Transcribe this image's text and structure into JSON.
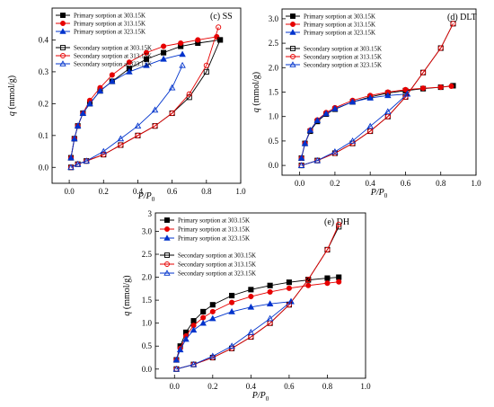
{
  "figure": {
    "chart_data": [
      {
        "type": "scatter",
        "panel_label": "(c) SS",
        "xlabel": "P/P0",
        "ylabel": "q (mmol/g)",
        "xlim": [
          -0.1,
          1.0
        ],
        "ylim": [
          -0.05,
          0.5
        ],
        "x_ticks": [
          "0.0",
          "0.2",
          "0.4",
          "0.6",
          "0.8",
          "1.0"
        ],
        "y_ticks": [
          "0.0",
          "0.1",
          "0.2",
          "0.3",
          "0.4"
        ],
        "legend_position": "top-left",
        "series": [
          {
            "name": "Primary sorption at 303.15K",
            "color": "#000000",
            "marker": "square",
            "filled": true,
            "x": [
              0.01,
              0.03,
              0.05,
              0.08,
              0.12,
              0.18,
              0.25,
              0.35,
              0.45,
              0.55,
              0.65,
              0.75,
              0.88
            ],
            "y": [
              0.03,
              0.09,
              0.13,
              0.17,
              0.2,
              0.24,
              0.27,
              0.31,
              0.34,
              0.36,
              0.38,
              0.39,
              0.4
            ]
          },
          {
            "name": "Primary sorption at 313.15K",
            "color": "#e60000",
            "marker": "circle",
            "filled": true,
            "x": [
              0.01,
              0.03,
              0.05,
              0.08,
              0.12,
              0.18,
              0.25,
              0.35,
              0.45,
              0.55,
              0.65,
              0.75,
              0.86
            ],
            "y": [
              0.03,
              0.09,
              0.13,
              0.17,
              0.21,
              0.25,
              0.29,
              0.33,
              0.36,
              0.38,
              0.39,
              0.4,
              0.41
            ]
          },
          {
            "name": "Primary sorption at 323.15K",
            "color": "#0033cc",
            "marker": "triangle",
            "filled": true,
            "x": [
              0.01,
              0.03,
              0.05,
              0.08,
              0.12,
              0.18,
              0.25,
              0.35,
              0.45,
              0.55,
              0.66
            ],
            "y": [
              0.03,
              0.09,
              0.13,
              0.17,
              0.2,
              0.24,
              0.27,
              0.3,
              0.32,
              0.34,
              0.355
            ]
          },
          {
            "name": "Secondary sorption at 303.15K",
            "color": "#000000",
            "marker": "square",
            "filled": false,
            "x": [
              0.01,
              0.05,
              0.1,
              0.2,
              0.3,
              0.4,
              0.5,
              0.6,
              0.7,
              0.8,
              0.88
            ],
            "y": [
              0.0,
              0.01,
              0.02,
              0.04,
              0.07,
              0.1,
              0.13,
              0.17,
              0.22,
              0.3,
              0.4
            ]
          },
          {
            "name": "Secondary sorption at 313.15K",
            "color": "#e60000",
            "marker": "circle",
            "filled": false,
            "x": [
              0.01,
              0.05,
              0.1,
              0.2,
              0.3,
              0.4,
              0.5,
              0.6,
              0.7,
              0.8,
              0.87
            ],
            "y": [
              0.0,
              0.01,
              0.02,
              0.04,
              0.07,
              0.1,
              0.13,
              0.17,
              0.23,
              0.32,
              0.44
            ]
          },
          {
            "name": "Secondary sorption at 323.15K",
            "color": "#0033cc",
            "marker": "triangle",
            "filled": false,
            "x": [
              0.01,
              0.05,
              0.1,
              0.2,
              0.3,
              0.4,
              0.5,
              0.6,
              0.66
            ],
            "y": [
              0.0,
              0.01,
              0.02,
              0.05,
              0.09,
              0.13,
              0.18,
              0.25,
              0.32
            ]
          }
        ]
      },
      {
        "type": "scatter",
        "panel_label": "(d) DLT",
        "xlabel": "P/P0",
        "ylabel": "q (mmol/g)",
        "xlim": [
          -0.1,
          1.0
        ],
        "ylim": [
          -0.2,
          3.2
        ],
        "x_ticks": [
          "0.0",
          "0.2",
          "0.4",
          "0.6",
          "0.8",
          "1.0"
        ],
        "y_ticks": [
          "0.0",
          "0.5",
          "1.0",
          "1.5",
          "2.0",
          "2.5",
          "3.0"
        ],
        "legend_position": "top-left",
        "series": [
          {
            "name": "Primary sorption at 303.15K",
            "color": "#000000",
            "marker": "square",
            "filled": true,
            "x": [
              0.01,
              0.03,
              0.06,
              0.1,
              0.15,
              0.2,
              0.3,
              0.4,
              0.5,
              0.6,
              0.7,
              0.8,
              0.87
            ],
            "y": [
              0.15,
              0.45,
              0.7,
              0.9,
              1.05,
              1.15,
              1.3,
              1.4,
              1.48,
              1.53,
              1.57,
              1.6,
              1.63
            ]
          },
          {
            "name": "Primary sorption at 313.15K",
            "color": "#e60000",
            "marker": "circle",
            "filled": true,
            "x": [
              0.01,
              0.03,
              0.06,
              0.1,
              0.15,
              0.2,
              0.3,
              0.4,
              0.5,
              0.6,
              0.7,
              0.8,
              0.86
            ],
            "y": [
              0.15,
              0.45,
              0.72,
              0.93,
              1.08,
              1.18,
              1.33,
              1.43,
              1.5,
              1.55,
              1.58,
              1.6,
              1.62
            ]
          },
          {
            "name": "Primary sorption at 323.15K",
            "color": "#0033cc",
            "marker": "triangle",
            "filled": true,
            "x": [
              0.01,
              0.03,
              0.06,
              0.1,
              0.15,
              0.2,
              0.3,
              0.4,
              0.5,
              0.61
            ],
            "y": [
              0.15,
              0.45,
              0.72,
              0.92,
              1.06,
              1.16,
              1.3,
              1.38,
              1.43,
              1.46
            ]
          },
          {
            "name": "Secondary sorption at 303.15K",
            "color": "#000000",
            "marker": "square",
            "filled": false,
            "x": [
              0.01,
              0.1,
              0.2,
              0.3,
              0.4,
              0.5,
              0.6,
              0.7,
              0.8,
              0.87
            ],
            "y": [
              0.0,
              0.1,
              0.25,
              0.45,
              0.7,
              1.0,
              1.4,
              1.9,
              2.4,
              2.9
            ]
          },
          {
            "name": "Secondary sorption at 313.15K",
            "color": "#e60000",
            "marker": "circle",
            "filled": false,
            "x": [
              0.01,
              0.1,
              0.2,
              0.3,
              0.4,
              0.5,
              0.6,
              0.7,
              0.8,
              0.87
            ],
            "y": [
              0.0,
              0.1,
              0.25,
              0.45,
              0.7,
              1.0,
              1.4,
              1.9,
              2.4,
              2.9
            ]
          },
          {
            "name": "Secondary sorption at 323.15K",
            "color": "#0033cc",
            "marker": "triangle",
            "filled": false,
            "x": [
              0.01,
              0.1,
              0.2,
              0.3,
              0.4,
              0.5,
              0.61
            ],
            "y": [
              0.0,
              0.1,
              0.28,
              0.5,
              0.8,
              1.1,
              1.46
            ]
          }
        ]
      },
      {
        "type": "scatter",
        "panel_label": "(e) DH",
        "xlabel": "P/P0",
        "ylabel": "q (mmol/g)",
        "xlim": [
          -0.1,
          1.0
        ],
        "ylim": [
          -0.2,
          3.4
        ],
        "x_ticks": [
          "0.0",
          "0.2",
          "0.4",
          "0.6",
          "0.8",
          "1.0"
        ],
        "y_ticks": [
          "0.0",
          "0.5",
          "1.0",
          "1.5",
          "2.0",
          "2.5",
          "3.0"
        ],
        "y_tick_partial": "3",
        "legend_position": "top-left",
        "series": [
          {
            "name": "Primary sorption at 303.15K",
            "color": "#000000",
            "marker": "square",
            "filled": true,
            "x": [
              0.01,
              0.03,
              0.06,
              0.1,
              0.15,
              0.2,
              0.3,
              0.4,
              0.5,
              0.6,
              0.7,
              0.8,
              0.86
            ],
            "y": [
              0.2,
              0.5,
              0.8,
              1.05,
              1.25,
              1.4,
              1.6,
              1.73,
              1.82,
              1.89,
              1.94,
              1.98,
              2.0
            ]
          },
          {
            "name": "Primary sorption at 313.15K",
            "color": "#e60000",
            "marker": "circle",
            "filled": true,
            "x": [
              0.01,
              0.03,
              0.06,
              0.1,
              0.15,
              0.2,
              0.3,
              0.4,
              0.5,
              0.6,
              0.7,
              0.8,
              0.86
            ],
            "y": [
              0.2,
              0.45,
              0.72,
              0.95,
              1.12,
              1.25,
              1.45,
              1.58,
              1.68,
              1.76,
              1.82,
              1.87,
              1.9
            ]
          },
          {
            "name": "Primary sorption at 323.15K",
            "color": "#0033cc",
            "marker": "triangle",
            "filled": true,
            "x": [
              0.01,
              0.03,
              0.06,
              0.1,
              0.15,
              0.2,
              0.3,
              0.4,
              0.5,
              0.61
            ],
            "y": [
              0.2,
              0.42,
              0.65,
              0.85,
              1.0,
              1.1,
              1.25,
              1.35,
              1.42,
              1.47
            ]
          },
          {
            "name": "Secondary sorption at 303.15K",
            "color": "#000000",
            "marker": "square",
            "filled": false,
            "x": [
              0.01,
              0.1,
              0.2,
              0.3,
              0.4,
              0.5,
              0.6,
              0.7,
              0.8,
              0.86
            ],
            "y": [
              0.0,
              0.1,
              0.25,
              0.45,
              0.7,
              1.0,
              1.4,
              1.95,
              2.6,
              3.1
            ]
          },
          {
            "name": "Secondary sorption at 313.15K",
            "color": "#e60000",
            "marker": "circle",
            "filled": false,
            "x": [
              0.01,
              0.1,
              0.2,
              0.3,
              0.4,
              0.5,
              0.6,
              0.7,
              0.8,
              0.86
            ],
            "y": [
              0.0,
              0.1,
              0.25,
              0.45,
              0.7,
              1.0,
              1.4,
              1.95,
              2.6,
              3.15
            ]
          },
          {
            "name": "Secondary sorption at 323.15K",
            "color": "#0033cc",
            "marker": "triangle",
            "filled": false,
            "x": [
              0.01,
              0.1,
              0.2,
              0.3,
              0.4,
              0.5,
              0.61
            ],
            "y": [
              0.0,
              0.1,
              0.28,
              0.5,
              0.8,
              1.1,
              1.47
            ]
          }
        ]
      }
    ]
  }
}
